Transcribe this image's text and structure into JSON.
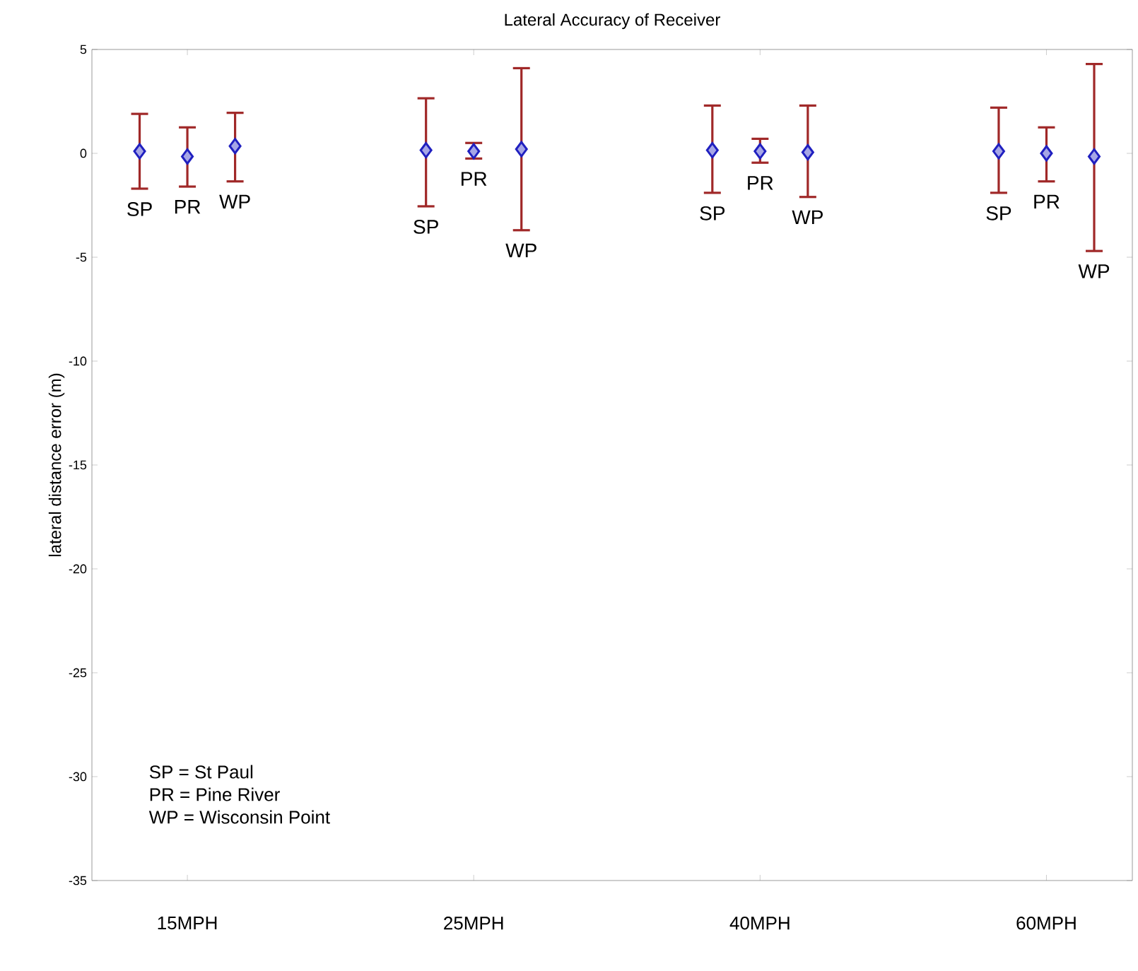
{
  "chart_data": {
    "type": "scatter",
    "title": "Lateral Accuracy of Receiver",
    "ylabel": "lateral distance error (m)",
    "annotations": [
      "SP = St Paul",
      "PR = Pine River",
      "WP = Wisconsin Point"
    ],
    "categories": [
      "15MPH",
      "25MPH",
      "40MPH",
      "60MPH"
    ],
    "ylim": [
      -35,
      5
    ],
    "yticks": [
      -35,
      -30,
      -25,
      -20,
      -15,
      -10,
      -5,
      0,
      5
    ],
    "marker": "diamond",
    "grid": false,
    "series": [
      {
        "name": "SP",
        "color": "#2020c0",
        "values": [
          0.1,
          0.15,
          0.15,
          0.1
        ],
        "errors": [
          [
            -1.7,
            1.9
          ],
          [
            -2.55,
            2.65
          ],
          [
            -1.9,
            2.3
          ],
          [
            -1.9,
            2.2
          ]
        ]
      },
      {
        "name": "PR",
        "color": "#2020c0",
        "values": [
          -0.15,
          0.1,
          0.1,
          0
        ],
        "errors": [
          [
            -1.6,
            1.25
          ],
          [
            -0.25,
            0.5
          ],
          [
            -0.45,
            0.7
          ],
          [
            -1.35,
            1.25
          ]
        ]
      },
      {
        "name": "WP",
        "color": "#2020c0",
        "values": [
          0.35,
          0.2,
          0.05,
          -0.15
        ],
        "errors": [
          [
            -1.35,
            1.95
          ],
          [
            -3.7,
            4.1
          ],
          [
            -2.1,
            2.3
          ],
          [
            -4.7,
            4.3
          ]
        ]
      }
    ]
  }
}
